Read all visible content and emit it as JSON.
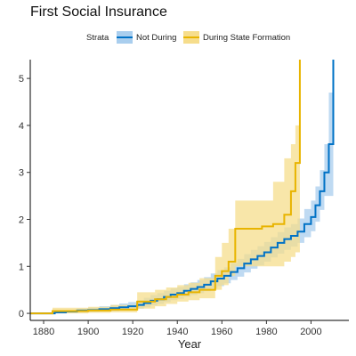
{
  "chart_data": {
    "type": "line",
    "title": "First Social Insurance",
    "xlabel": "Year",
    "ylabel": "",
    "xlim": [
      1874,
      2017
    ],
    "ylim": [
      -0.15,
      5.4
    ],
    "x_ticks": [
      1880,
      1900,
      1920,
      1940,
      1960,
      1980,
      2000
    ],
    "y_ticks": [
      0,
      1,
      2,
      3,
      4,
      5
    ],
    "grid": false,
    "legend": {
      "position": "top",
      "title": "Strata",
      "entries": [
        "Not During",
        "During State Formation"
      ]
    },
    "series": [
      {
        "name": "Not During",
        "color": "#0072C6",
        "band_color": "#A9CEEE",
        "step": true,
        "x": [
          1874,
          1885,
          1890,
          1895,
          1900,
          1905,
          1910,
          1914,
          1918,
          1922,
          1925,
          1928,
          1931,
          1934,
          1937,
          1940,
          1943,
          1946,
          1949,
          1952,
          1955,
          1958,
          1961,
          1964,
          1967,
          1970,
          1973,
          1976,
          1979,
          1982,
          1985,
          1988,
          1991,
          1994,
          1997,
          2000,
          2002,
          2004,
          2006,
          2008,
          2010
        ],
        "y": [
          0.0,
          0.02,
          0.04,
          0.06,
          0.07,
          0.09,
          0.11,
          0.13,
          0.15,
          0.18,
          0.22,
          0.27,
          0.3,
          0.35,
          0.4,
          0.43,
          0.48,
          0.52,
          0.56,
          0.61,
          0.68,
          0.74,
          0.8,
          0.88,
          0.96,
          1.06,
          1.15,
          1.22,
          1.3,
          1.4,
          1.5,
          1.58,
          1.65,
          1.74,
          1.9,
          2.05,
          2.3,
          2.6,
          3.0,
          3.6,
          5.4
        ],
        "lower": [
          0.0,
          0.0,
          0.01,
          0.02,
          0.03,
          0.04,
          0.05,
          0.07,
          0.08,
          0.1,
          0.13,
          0.17,
          0.2,
          0.24,
          0.28,
          0.31,
          0.35,
          0.39,
          0.43,
          0.47,
          0.53,
          0.58,
          0.64,
          0.71,
          0.78,
          0.87,
          0.95,
          1.02,
          1.1,
          1.19,
          1.27,
          1.35,
          1.42,
          1.5,
          1.62,
          1.75,
          1.95,
          2.2,
          2.5,
          2.5,
          2.5
        ],
        "upper": [
          0.02,
          0.05,
          0.07,
          0.1,
          0.12,
          0.15,
          0.18,
          0.21,
          0.24,
          0.28,
          0.33,
          0.39,
          0.43,
          0.48,
          0.53,
          0.56,
          0.62,
          0.66,
          0.71,
          0.77,
          0.85,
          0.92,
          0.98,
          1.07,
          1.16,
          1.26,
          1.35,
          1.43,
          1.52,
          1.62,
          1.73,
          1.83,
          1.9,
          2.02,
          2.22,
          2.4,
          2.7,
          3.05,
          3.6,
          4.7,
          5.4
        ]
      },
      {
        "name": "During State Formation",
        "color": "#E8B400",
        "band_color": "#F6DD8C",
        "step": true,
        "x": [
          1874,
          1884,
          1890,
          1900,
          1910,
          1922,
          1930,
          1935,
          1940,
          1945,
          1950,
          1957,
          1960,
          1963,
          1966,
          1978,
          1983,
          1988,
          1991,
          1993,
          1995
        ],
        "y": [
          0.0,
          0.05,
          0.05,
          0.06,
          0.08,
          0.25,
          0.3,
          0.35,
          0.4,
          0.45,
          0.5,
          0.8,
          0.9,
          1.1,
          1.8,
          1.85,
          1.9,
          2.1,
          2.6,
          3.2,
          5.4
        ],
        "lower": [
          0.0,
          0.0,
          0.0,
          0.01,
          0.02,
          0.1,
          0.15,
          0.2,
          0.25,
          0.28,
          0.32,
          0.5,
          0.6,
          0.8,
          1.0,
          1.0,
          1.0,
          1.1,
          1.2,
          1.3,
          1.4
        ],
        "upper": [
          0.0,
          0.12,
          0.12,
          0.14,
          0.18,
          0.45,
          0.5,
          0.55,
          0.6,
          0.65,
          0.75,
          1.2,
          1.5,
          1.8,
          2.4,
          2.4,
          2.8,
          3.3,
          3.6,
          4.0,
          5.4
        ]
      }
    ]
  }
}
